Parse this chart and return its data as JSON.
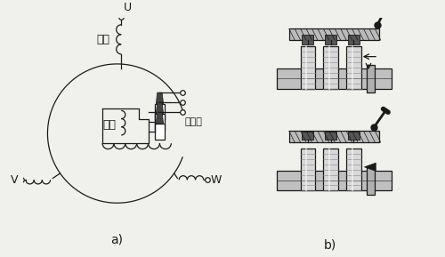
{
  "bg_color": "#f0f0ec",
  "line_color": "#1a1a1a",
  "label_a": "a)",
  "label_b": "b)",
  "label_U": "U",
  "label_V": "V",
  "label_W": "W",
  "label_stator": "定子",
  "label_rotor": "转子",
  "label_slip_ring": "集电环",
  "font_size_label": 9,
  "font_size_sub": 10
}
